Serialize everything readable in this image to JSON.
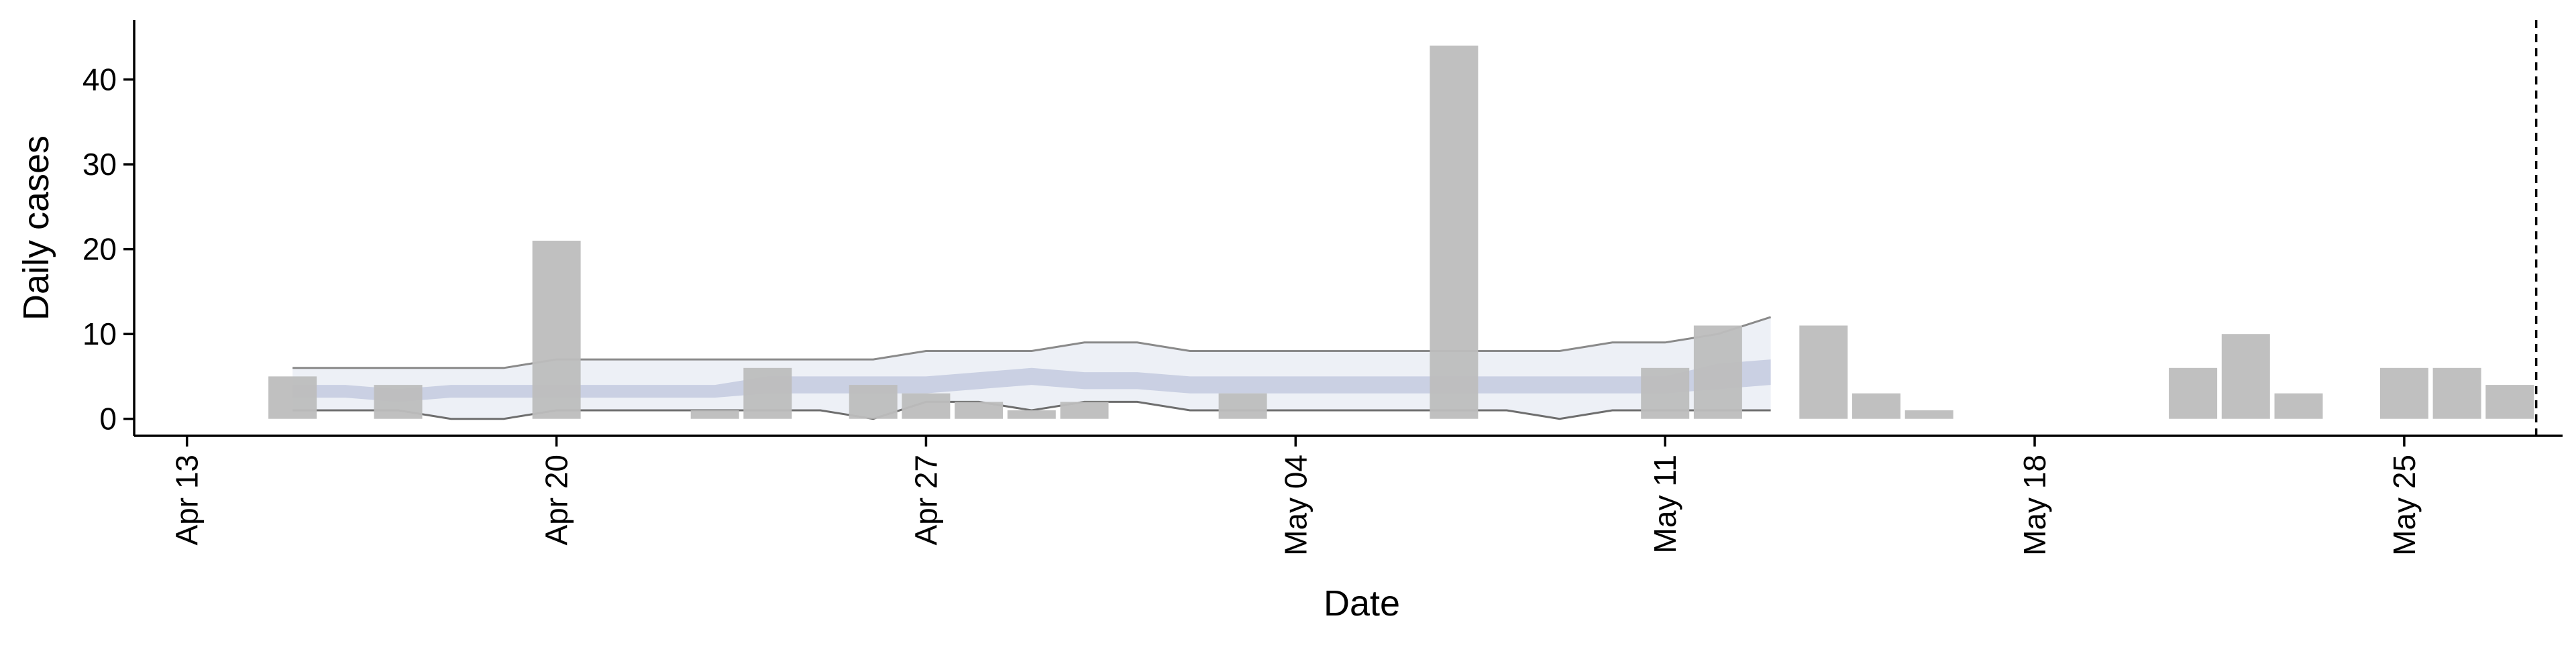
{
  "chart_data": {
    "type": "bar",
    "xlabel": "Date",
    "ylabel": "Daily cases",
    "ylim": [
      -2,
      47
    ],
    "xlim": [
      "2020-04-12",
      "2020-05-28"
    ],
    "x_ticks": [
      {
        "date": "2020-04-13",
        "label": "Apr 13"
      },
      {
        "date": "2020-04-20",
        "label": "Apr 20"
      },
      {
        "date": "2020-04-27",
        "label": "Apr 27"
      },
      {
        "date": "2020-05-04",
        "label": "May 04"
      },
      {
        "date": "2020-05-11",
        "label": "May 11"
      },
      {
        "date": "2020-05-18",
        "label": "May 18"
      },
      {
        "date": "2020-05-25",
        "label": "May 25"
      }
    ],
    "y_ticks": [
      0,
      10,
      20,
      30,
      40
    ],
    "grid": false,
    "legend": "none",
    "series": [
      {
        "kind": "bar",
        "color": "#bdbdbd",
        "points": [
          {
            "x": "2020-04-15",
            "y": 5
          },
          {
            "x": "2020-04-17",
            "y": 4
          },
          {
            "x": "2020-04-20",
            "y": 21
          },
          {
            "x": "2020-04-23",
            "y": 1
          },
          {
            "x": "2020-04-24",
            "y": 6
          },
          {
            "x": "2020-04-26",
            "y": 4
          },
          {
            "x": "2020-04-27",
            "y": 3
          },
          {
            "x": "2020-04-28",
            "y": 2
          },
          {
            "x": "2020-04-29",
            "y": 1
          },
          {
            "x": "2020-04-30",
            "y": 2
          },
          {
            "x": "2020-05-03",
            "y": 3
          },
          {
            "x": "2020-05-07",
            "y": 44
          },
          {
            "x": "2020-05-11",
            "y": 6
          },
          {
            "x": "2020-05-12",
            "y": 11
          },
          {
            "x": "2020-05-14",
            "y": 11
          },
          {
            "x": "2020-05-15",
            "y": 3
          },
          {
            "x": "2020-05-16",
            "y": 1
          },
          {
            "x": "2020-05-21",
            "y": 6
          },
          {
            "x": "2020-05-22",
            "y": 10
          },
          {
            "x": "2020-05-23",
            "y": 3
          },
          {
            "x": "2020-05-25",
            "y": 6
          },
          {
            "x": "2020-05-26",
            "y": 6
          },
          {
            "x": "2020-05-27",
            "y": 4
          }
        ]
      },
      {
        "kind": "band",
        "color": "#dfe3ef",
        "x": [
          "2020-04-15",
          "2020-04-16",
          "2020-04-17",
          "2020-04-18",
          "2020-04-19",
          "2020-04-20",
          "2020-04-21",
          "2020-04-22",
          "2020-04-23",
          "2020-04-24",
          "2020-04-25",
          "2020-04-26",
          "2020-04-27",
          "2020-04-28",
          "2020-04-29",
          "2020-04-30",
          "2020-05-01",
          "2020-05-02",
          "2020-05-03",
          "2020-05-04",
          "2020-05-05",
          "2020-05-06",
          "2020-05-07",
          "2020-05-08",
          "2020-05-09",
          "2020-05-10",
          "2020-05-11",
          "2020-05-12",
          "2020-05-13"
        ],
        "lower": [
          1,
          1,
          1,
          0,
          0,
          1,
          1,
          1,
          1,
          1,
          1,
          0,
          2,
          2,
          1,
          2,
          2,
          1,
          1,
          1,
          1,
          1,
          1,
          1,
          0,
          1,
          1,
          1,
          1
        ],
        "upper": [
          6,
          6,
          6,
          6,
          6,
          7,
          7,
          7,
          7,
          7,
          7,
          7,
          8,
          8,
          8,
          9,
          9,
          8,
          8,
          8,
          8,
          8,
          8,
          8,
          8,
          9,
          9,
          10,
          12
        ]
      },
      {
        "kind": "band",
        "color": "#bec6dc",
        "x": [
          "2020-04-15",
          "2020-04-16",
          "2020-04-17",
          "2020-04-18",
          "2020-04-19",
          "2020-04-20",
          "2020-04-21",
          "2020-04-22",
          "2020-04-23",
          "2020-04-24",
          "2020-04-25",
          "2020-04-26",
          "2020-04-27",
          "2020-04-28",
          "2020-04-29",
          "2020-04-30",
          "2020-05-01",
          "2020-05-02",
          "2020-05-03",
          "2020-05-04",
          "2020-05-05",
          "2020-05-06",
          "2020-05-07",
          "2020-05-08",
          "2020-05-09",
          "2020-05-10",
          "2020-05-11",
          "2020-05-12",
          "2020-05-13"
        ],
        "lower": [
          2.5,
          2.5,
          2,
          2.5,
          2.5,
          2.5,
          2.5,
          2.5,
          2.5,
          3,
          3,
          3,
          3,
          3.5,
          4,
          3.5,
          3.5,
          3,
          3,
          3,
          3,
          3,
          3,
          3,
          3,
          3,
          3,
          3.5,
          4
        ],
        "upper": [
          4,
          4,
          3.5,
          4,
          4,
          4,
          4,
          4,
          4,
          5,
          5,
          5,
          5,
          5.5,
          6,
          5.5,
          5.5,
          5,
          5,
          5,
          5,
          5,
          5,
          5,
          5,
          5,
          5,
          6.5,
          7
        ]
      }
    ],
    "vline": {
      "x": "2020-05-27.5",
      "style": "dashed"
    }
  }
}
